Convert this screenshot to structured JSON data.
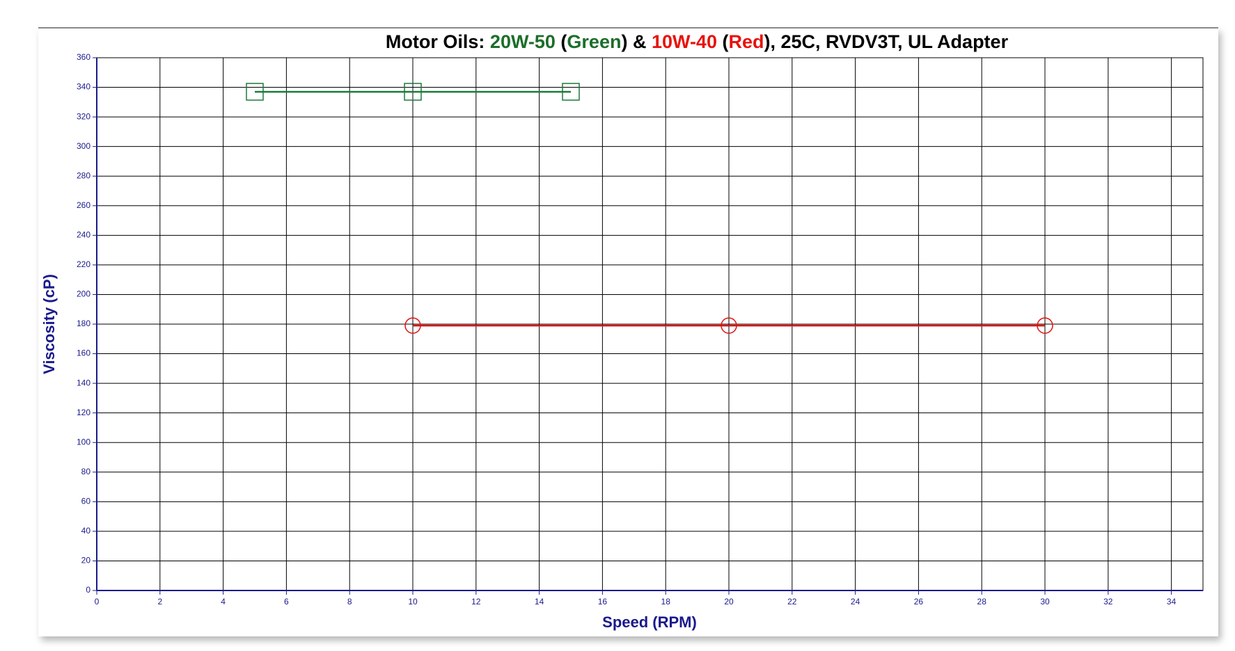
{
  "chart_data": {
    "type": "line",
    "title_parts": [
      {
        "text": "Motor Oils: ",
        "color": "#000000"
      },
      {
        "text": "20W-50",
        "color": "#1b6e2a"
      },
      {
        "text": " (",
        "color": "#000000"
      },
      {
        "text": "Green",
        "color": "#1b6e2a"
      },
      {
        "text": ") & ",
        "color": "#000000"
      },
      {
        "text": "10W-40",
        "color": "#e8120c"
      },
      {
        "text": " (",
        "color": "#000000"
      },
      {
        "text": "Red",
        "color": "#e8120c"
      },
      {
        "text": "), 25C,  RVDV3T,  UL Adapter",
        "color": "#000000"
      }
    ],
    "x_label": "Speed (RPM)",
    "y_label": "Viscosity (cP)",
    "xlim": [
      0,
      35
    ],
    "xticks": [
      0,
      2,
      4,
      6,
      8,
      10,
      12,
      14,
      16,
      18,
      20,
      22,
      24,
      26,
      28,
      30,
      32,
      34
    ],
    "ylim": [
      0,
      360
    ],
    "yticks": [
      0,
      20,
      40,
      60,
      80,
      100,
      120,
      140,
      160,
      180,
      200,
      220,
      240,
      260,
      280,
      300,
      320,
      340,
      360
    ],
    "grid": true,
    "series": [
      {
        "name": "20W-50",
        "color": "#1b7a3c",
        "marker": "square",
        "x": [
          5,
          10,
          15
        ],
        "values": [
          337,
          337,
          337
        ]
      },
      {
        "name": "10W-40",
        "color": "#e01010",
        "marker": "circle",
        "x": [
          10,
          20,
          30
        ],
        "values": [
          179,
          179,
          179
        ]
      }
    ]
  }
}
